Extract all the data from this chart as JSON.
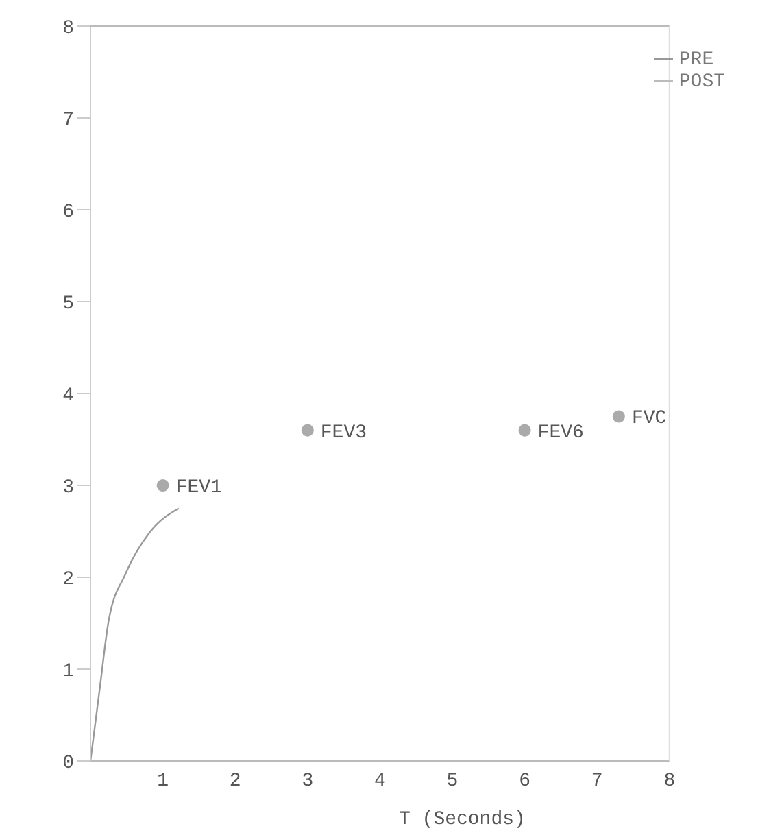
{
  "chart_data": {
    "type": "line",
    "xlabel": "T (Seconds)",
    "xlim": [
      0,
      8
    ],
    "xticks": [
      1,
      2,
      3,
      4,
      5,
      6,
      7,
      8
    ],
    "ylim": [
      0,
      8
    ],
    "yticks": [
      0,
      1,
      2,
      3,
      4,
      5,
      6,
      7,
      8
    ],
    "legend": "top right",
    "grid": false,
    "marker": "none",
    "series": [
      {
        "name": "PRE",
        "color": "#999999",
        "x": [
          0,
          0.13,
          0.25,
          0.48,
          0.82,
          1.22
        ],
        "values": [
          0,
          0.8,
          1.52,
          2.03,
          2.49,
          2.75
        ]
      },
      {
        "name": "POST",
        "color": "#bbbbbb"
      },
      {
        "type": "scatter",
        "marker": "circle",
        "color": "#aaaaaa",
        "x": [
          1,
          3,
          6,
          7.3
        ],
        "values": [
          3,
          3.6,
          3.6,
          3.75
        ],
        "value_labels": [
          "FEV1",
          "FEV3",
          "FEV6",
          "FVC"
        ]
      }
    ]
  }
}
